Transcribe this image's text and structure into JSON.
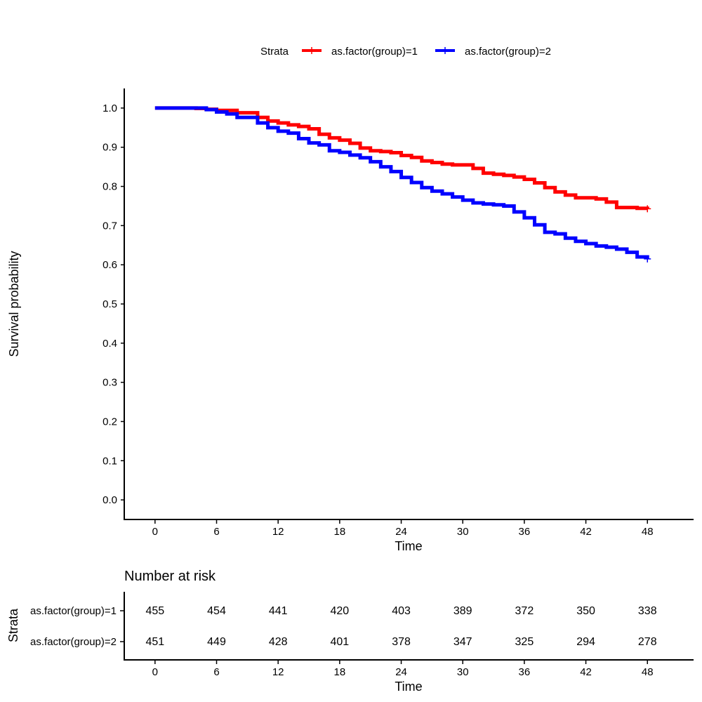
{
  "chart_data": [
    {
      "type": "line",
      "subtype": "kaplan-meier-step",
      "title": "",
      "xlabel": "Time",
      "ylabel": "Survival probability",
      "xlim": [
        -3,
        52.5
      ],
      "ylim": [
        -0.05,
        1.05
      ],
      "x_ticks": [
        0,
        6,
        12,
        18,
        24,
        30,
        36,
        42,
        48
      ],
      "y_ticks": [
        0.0,
        0.1,
        0.2,
        0.3,
        0.4,
        0.5,
        0.6,
        0.7,
        0.8,
        0.9,
        1.0
      ],
      "y_tick_labels": [
        "0.0",
        "0.1",
        "0.2",
        "0.3",
        "0.4",
        "0.5",
        "0.6",
        "0.7",
        "0.8",
        "0.9",
        "1.0"
      ],
      "grid": false,
      "legend": {
        "title": "Strata",
        "position": "top"
      },
      "series": [
        {
          "name": "as.factor(group)=1",
          "color": "#ff0000",
          "censor_mark_at_end": true,
          "x": [
            0,
            4,
            5,
            6,
            8,
            10,
            11,
            12,
            13,
            14,
            15,
            16,
            17,
            18,
            19,
            20,
            21,
            22,
            23,
            24,
            25,
            26,
            27,
            28,
            29,
            30,
            31,
            32,
            33,
            34,
            35,
            36,
            37,
            38,
            39,
            40,
            41,
            42,
            43,
            44,
            45,
            46,
            47,
            48
          ],
          "y": [
            1.0,
            0.999,
            0.997,
            0.994,
            0.988,
            0.976,
            0.967,
            0.962,
            0.957,
            0.953,
            0.947,
            0.933,
            0.924,
            0.918,
            0.91,
            0.898,
            0.891,
            0.889,
            0.886,
            0.879,
            0.874,
            0.865,
            0.861,
            0.857,
            0.855,
            0.855,
            0.846,
            0.834,
            0.831,
            0.828,
            0.824,
            0.818,
            0.809,
            0.797,
            0.786,
            0.778,
            0.771,
            0.771,
            0.768,
            0.76,
            0.746,
            0.746,
            0.744,
            0.743
          ]
        },
        {
          "name": "as.factor(group)=2",
          "color": "#0000ff",
          "censor_mark_at_end": true,
          "x": [
            0,
            5,
            6,
            7,
            8,
            10,
            11,
            12,
            13,
            14,
            15,
            16,
            17,
            18,
            19,
            20,
            21,
            22,
            23,
            24,
            25,
            26,
            27,
            28,
            29,
            30,
            31,
            32,
            33,
            34,
            35,
            36,
            37,
            38,
            39,
            40,
            41,
            42,
            43,
            44,
            45,
            46,
            47,
            48
          ],
          "y": [
            1.0,
            0.996,
            0.99,
            0.985,
            0.976,
            0.962,
            0.95,
            0.941,
            0.936,
            0.922,
            0.911,
            0.906,
            0.891,
            0.887,
            0.88,
            0.873,
            0.863,
            0.85,
            0.838,
            0.823,
            0.81,
            0.797,
            0.788,
            0.781,
            0.773,
            0.765,
            0.758,
            0.755,
            0.753,
            0.75,
            0.735,
            0.72,
            0.702,
            0.683,
            0.679,
            0.668,
            0.66,
            0.654,
            0.648,
            0.645,
            0.64,
            0.632,
            0.62,
            0.615
          ]
        }
      ]
    },
    {
      "type": "table",
      "title": "Number at risk",
      "xlabel": "Time",
      "ylabel": "Strata",
      "xlim": [
        -3,
        52.5
      ],
      "x_ticks": [
        0,
        6,
        12,
        18,
        24,
        30,
        36,
        42,
        48
      ],
      "rows": [
        {
          "name": "as.factor(group)=1",
          "color": "#000000",
          "values": [
            455,
            454,
            441,
            420,
            403,
            389,
            372,
            350,
            338
          ]
        },
        {
          "name": "as.factor(group)=2",
          "color": "#000000",
          "values": [
            451,
            449,
            428,
            401,
            378,
            347,
            325,
            294,
            278
          ]
        }
      ]
    }
  ]
}
